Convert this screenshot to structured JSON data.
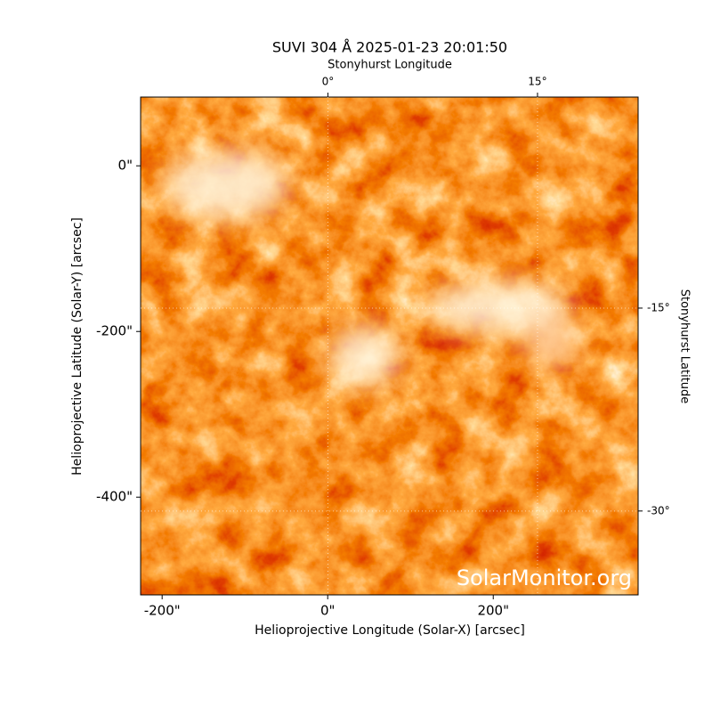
{
  "chart_data": {
    "type": "image",
    "title": "SUVI 304 Å 2025-01-23 20:01:50",
    "xlabel": "Helioprojective Longitude (Solar-X) [arcsec]",
    "ylabel": "Helioprojective Latitude (Solar-Y) [arcsec]",
    "xlim": [
      -226,
      375
    ],
    "ylim": [
      -518,
      83
    ],
    "xticks": [
      {
        "value": -200,
        "label": "-200\""
      },
      {
        "value": 0,
        "label": "0\""
      },
      {
        "value": 200,
        "label": "200\""
      }
    ],
    "yticks": [
      {
        "value": -400,
        "label": "-400\""
      },
      {
        "value": -200,
        "label": "-200\""
      },
      {
        "value": 0,
        "label": "0\""
      }
    ],
    "top_axis": {
      "label": "Stonyhurst Longitude",
      "xlim": [
        -13.4,
        22.2
      ],
      "ticks": [
        {
          "value": 0,
          "label": "0°"
        },
        {
          "value": 15,
          "label": "15°"
        }
      ]
    },
    "right_axis": {
      "label": "Stonyhurst Latitude",
      "ylim": [
        -36.2,
        0.6
      ],
      "ticks": [
        {
          "value": -15,
          "label": "-15°"
        },
        {
          "value": -30,
          "label": "-30°"
        }
      ]
    },
    "grid": true,
    "watermark": "SolarMonitor.org"
  }
}
